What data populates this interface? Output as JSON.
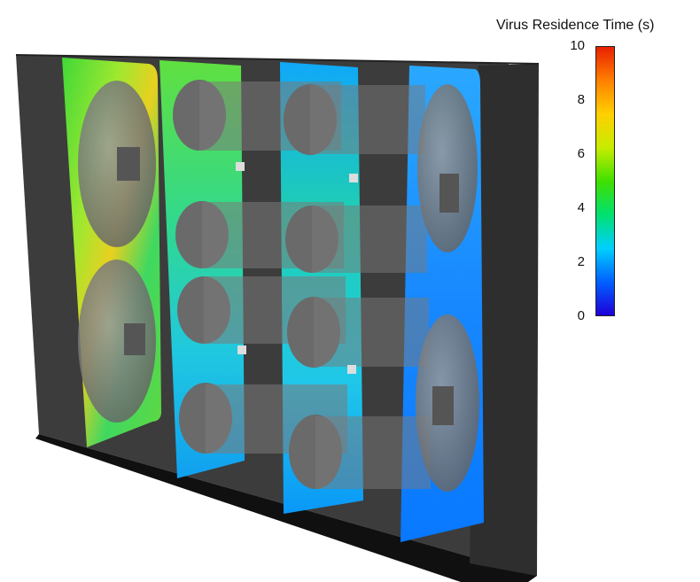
{
  "colorbar": {
    "title": "Virus Residence Time (s)",
    "ticks": [
      "10",
      "8",
      "6",
      "4",
      "2",
      "0"
    ],
    "min": 0,
    "max": 10,
    "colormap": [
      "#1e00d8",
      "#0060ff",
      "#00d0ff",
      "#00e070",
      "#40e000",
      "#c8ec00",
      "#ffd000",
      "#ff8000",
      "#e82000"
    ]
  },
  "scene": {
    "description_colors": {
      "enclosure": "#3a3a3a",
      "floor": "#111111",
      "capsule": "#8a8a8a"
    }
  }
}
